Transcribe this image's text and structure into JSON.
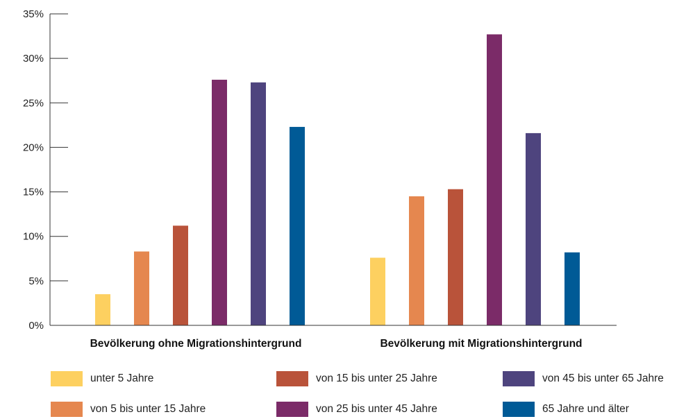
{
  "chart_data": {
    "type": "bar",
    "categories": [
      "Bevölkerung ohne Migrationshintergrund",
      "Bevölkerung mit Migrationshintergrund"
    ],
    "series": [
      {
        "name": "unter 5 Jahre",
        "color": "#FDD060",
        "values": [
          3.5,
          7.6
        ]
      },
      {
        "name": "von 5 bis unter 15 Jahre",
        "color": "#E5874F",
        "values": [
          8.3,
          14.5
        ]
      },
      {
        "name": "von 15 bis unter 25 Jahre",
        "color": "#B9533A",
        "values": [
          11.2,
          15.3
        ]
      },
      {
        "name": "von 25 bis unter 45 Jahre",
        "color": "#7B2B68",
        "values": [
          27.6,
          32.7
        ]
      },
      {
        "name": "von 45 bis unter 65 Jahre",
        "color": "#4E447E",
        "values": [
          27.3,
          21.6
        ]
      },
      {
        "name": "65 Jahre und älter",
        "color": "#005A96",
        "values": [
          22.3,
          8.2
        ]
      }
    ],
    "y_ticks": [
      "0%",
      "5%",
      "10%",
      "15%",
      "20%",
      "25%",
      "30%",
      "35%"
    ],
    "ylim": [
      0,
      35
    ],
    "grid": false,
    "legend_position": "bottom"
  }
}
